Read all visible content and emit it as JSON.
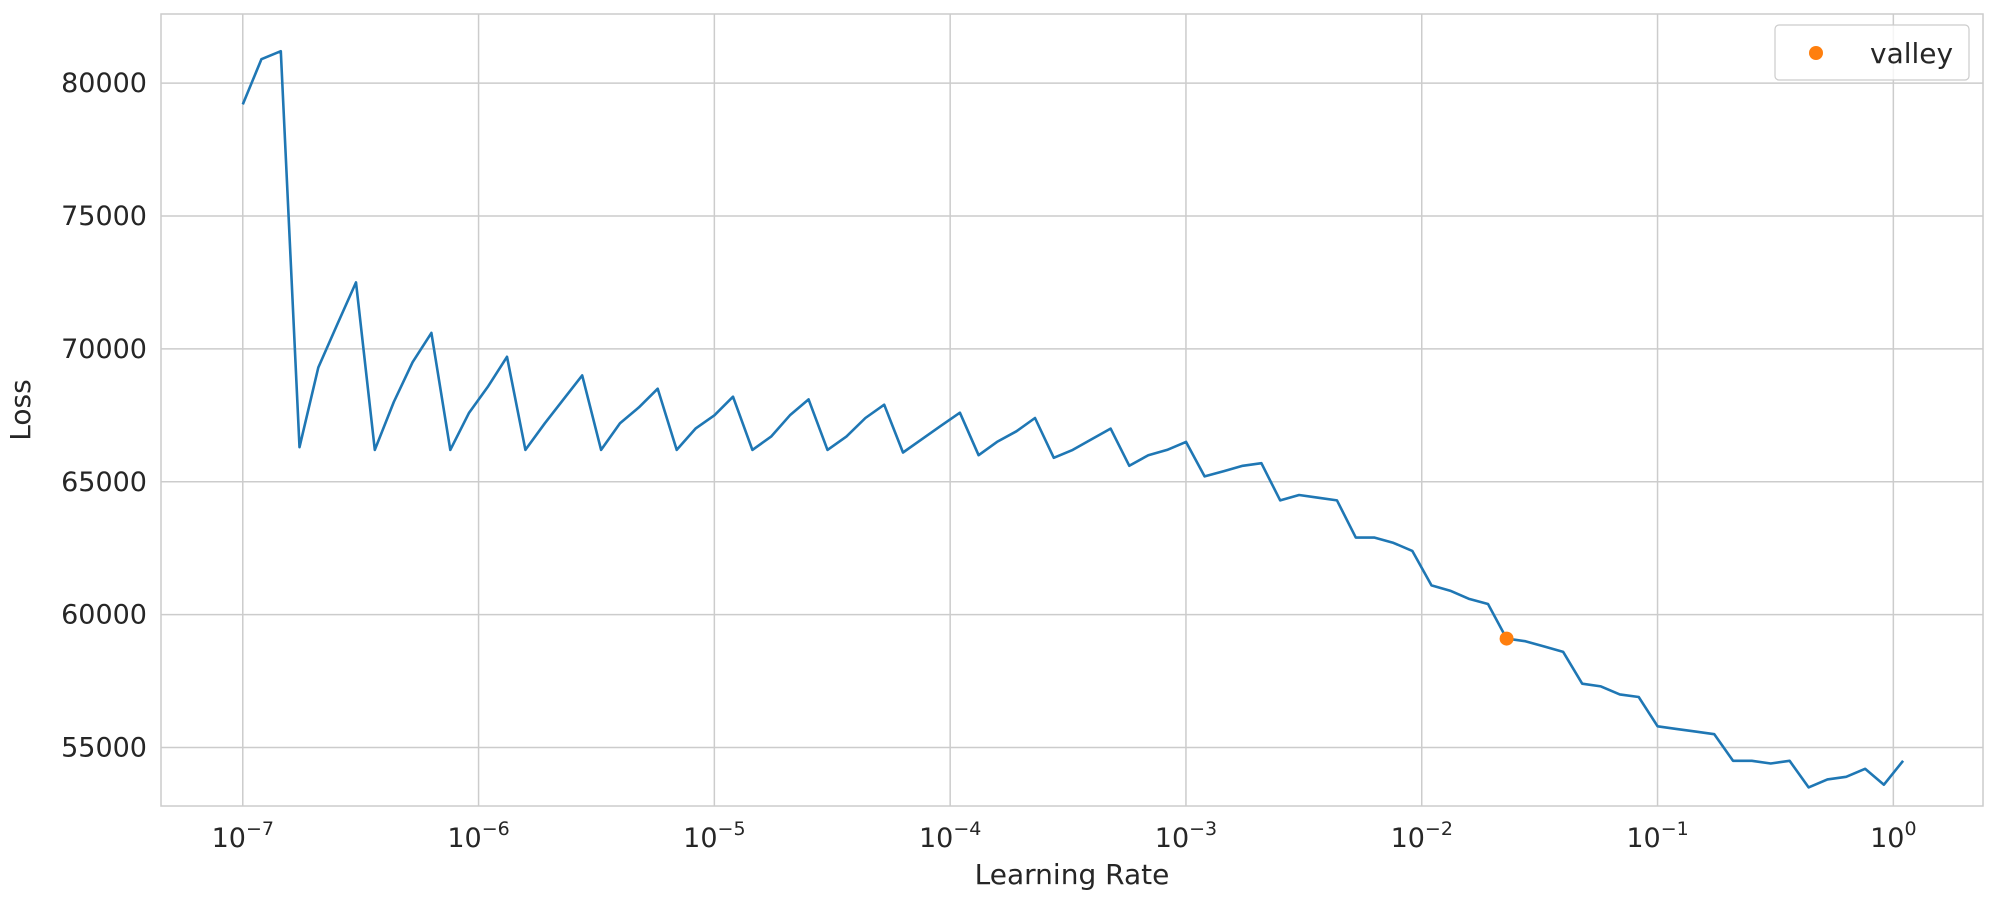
{
  "chart_data": {
    "type": "line",
    "xscale": "log",
    "xlabel": "Learning Rate",
    "ylabel": "Loss",
    "xlim": [
      4.5e-08,
      2.4
    ],
    "ylim": [
      52800,
      82600
    ],
    "grid": true,
    "legend": {
      "position": "top-right",
      "entries": [
        {
          "label": "valley",
          "marker": "circle",
          "color": "#ff7f0e"
        }
      ]
    },
    "x_ticks": [
      {
        "value": 1e-07,
        "base": "10",
        "exp": "−7"
      },
      {
        "value": 1e-06,
        "base": "10",
        "exp": "−6"
      },
      {
        "value": 1e-05,
        "base": "10",
        "exp": "−5"
      },
      {
        "value": 0.0001,
        "base": "10",
        "exp": "−4"
      },
      {
        "value": 0.001,
        "base": "10",
        "exp": "−3"
      },
      {
        "value": 0.01,
        "base": "10",
        "exp": "−2"
      },
      {
        "value": 0.1,
        "base": "10",
        "exp": "−1"
      },
      {
        "value": 1,
        "base": "10",
        "exp": "0"
      }
    ],
    "y_ticks": [
      {
        "value": 55000,
        "label": "55000"
      },
      {
        "value": 60000,
        "label": "60000"
      },
      {
        "value": 65000,
        "label": "65000"
      },
      {
        "value": 70000,
        "label": "70000"
      },
      {
        "value": 75000,
        "label": "75000"
      },
      {
        "value": 80000,
        "label": "80000"
      }
    ],
    "series": [
      {
        "color": "#1f77b4",
        "x": [
          1e-07,
          1.2e-07,
          1.45e-07,
          1.74e-07,
          2.09e-07,
          2.51e-07,
          3.02e-07,
          3.63e-07,
          4.37e-07,
          5.25e-07,
          6.31e-07,
          7.59e-07,
          9.12e-07,
          1.1e-06,
          1.32e-06,
          1.58e-06,
          1.91e-06,
          2.29e-06,
          2.75e-06,
          3.31e-06,
          3.98e-06,
          4.79e-06,
          5.75e-06,
          6.92e-06,
          8.32e-06,
          1e-05,
          1.2e-05,
          1.45e-05,
          1.74e-05,
          2.09e-05,
          2.51e-05,
          3.02e-05,
          3.63e-05,
          4.37e-05,
          5.25e-05,
          6.31e-05,
          7.59e-05,
          9.12e-05,
          0.00011,
          0.000132,
          0.000158,
          0.000191,
          0.000229,
          0.000275,
          0.000331,
          0.000398,
          0.000479,
          0.000575,
          0.000692,
          0.000832,
          0.001,
          0.0012,
          0.00145,
          0.00174,
          0.00209,
          0.00251,
          0.00302,
          0.00363,
          0.00437,
          0.00525,
          0.00631,
          0.00759,
          0.00912,
          0.011,
          0.0132,
          0.0158,
          0.0191,
          0.0229,
          0.0275,
          0.0331,
          0.0398,
          0.0479,
          0.0575,
          0.0692,
          0.0832,
          0.1,
          0.12,
          0.145,
          0.174,
          0.209,
          0.251,
          0.302,
          0.363,
          0.437,
          0.525,
          0.631,
          0.759,
          0.912,
          1.1
        ],
        "y": [
          79200,
          80900,
          81200,
          66300,
          69300,
          70900,
          72500,
          66200,
          68000,
          69500,
          70600,
          66200,
          67600,
          68600,
          69700,
          66200,
          67200,
          68100,
          69000,
          66200,
          67200,
          67800,
          68500,
          66200,
          67000,
          67500,
          68200,
          66200,
          66700,
          67500,
          68100,
          66200,
          66700,
          67400,
          67900,
          66100,
          66600,
          67100,
          67600,
          66000,
          66500,
          66900,
          67400,
          65900,
          66200,
          66600,
          67000,
          65600,
          66000,
          66200,
          66500,
          65200,
          65400,
          65600,
          65700,
          64300,
          64500,
          64400,
          64300,
          62900,
          62900,
          62700,
          62400,
          61100,
          60900,
          60600,
          60400,
          59100,
          59000,
          58800,
          58600,
          57400,
          57300,
          57000,
          56900,
          55800,
          55700,
          55600,
          55500,
          54500,
          54500,
          54400,
          54500,
          53500,
          53800,
          53900,
          54200,
          53600,
          54500
        ]
      }
    ],
    "valley_point": {
      "label": "valley",
      "x": 0.0229,
      "y": 59100,
      "color": "#ff7f0e"
    }
  }
}
